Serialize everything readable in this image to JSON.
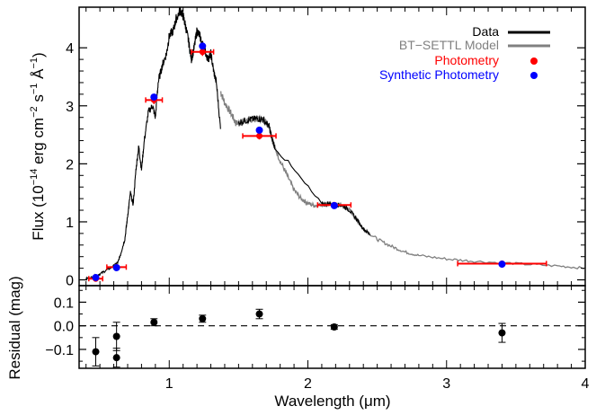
{
  "chart_data": [
    {
      "type": "line",
      "panel": "top",
      "ylabel_main": "Flux (10",
      "ylabel_exp1": "−14",
      "ylabel_mid": " erg cm",
      "ylabel_exp2": "−2",
      "ylabel_mid2": " s",
      "ylabel_exp3": "−1",
      "ylabel_mid3": " Å",
      "ylabel_exp4": "−1",
      "ylabel_end": ")",
      "xlim": [
        0.35,
        4.0
      ],
      "ylim": [
        -0.1,
        4.7
      ],
      "y_ticks": [
        "0",
        "1",
        "2",
        "3",
        "4"
      ],
      "legend_position": "top-right",
      "legend": [
        {
          "label": "Data",
          "color": "#000000",
          "marker": "line"
        },
        {
          "label": "BT−SETTL Model",
          "color": "#808080",
          "marker": "line"
        },
        {
          "label": "Photometry",
          "color": "#ff0000",
          "marker": "dot"
        },
        {
          "label": "Synthetic Photometry",
          "color": "#0000ff",
          "marker": "dot"
        }
      ],
      "series": [
        {
          "name": "Data",
          "color": "#000000",
          "points": [
            [
              0.4,
              0.02
            ],
            [
              0.45,
              0.05
            ],
            [
              0.5,
              0.1
            ],
            [
              0.55,
              0.17
            ],
            [
              0.6,
              0.24
            ],
            [
              0.63,
              0.3
            ],
            [
              0.65,
              0.45
            ],
            [
              0.68,
              0.7
            ],
            [
              0.7,
              1.1
            ],
            [
              0.72,
              1.5
            ],
            [
              0.74,
              1.3
            ],
            [
              0.76,
              1.9
            ],
            [
              0.78,
              2.3
            ],
            [
              0.8,
              1.9
            ],
            [
              0.82,
              2.4
            ],
            [
              0.85,
              2.9
            ],
            [
              0.88,
              3.0
            ],
            [
              0.9,
              2.8
            ],
            [
              0.92,
              3.4
            ],
            [
              0.95,
              3.7
            ],
            [
              0.98,
              3.9
            ],
            [
              1.0,
              4.2
            ],
            [
              1.03,
              4.3
            ],
            [
              1.05,
              4.5
            ],
            [
              1.08,
              4.65
            ],
            [
              1.1,
              4.55
            ],
            [
              1.12,
              4.35
            ],
            [
              1.14,
              4.1
            ],
            [
              1.16,
              3.8
            ],
            [
              1.18,
              4.0
            ],
            [
              1.2,
              4.3
            ],
            [
              1.22,
              4.2
            ],
            [
              1.25,
              4.0
            ],
            [
              1.28,
              3.8
            ],
            [
              1.3,
              3.9
            ],
            [
              1.32,
              3.6
            ],
            [
              1.34,
              3.4
            ],
            [
              1.37,
              2.6
            ]
          ]
        },
        {
          "name": "BT−SETTL Model",
          "color": "#808080",
          "points": [
            [
              1.37,
              3.25
            ],
            [
              1.4,
              3.05
            ],
            [
              1.45,
              2.85
            ],
            [
              1.48,
              2.7
            ],
            [
              1.52,
              2.72
            ],
            [
              1.56,
              2.75
            ],
            [
              1.6,
              2.77
            ],
            [
              1.64,
              2.78
            ],
            [
              1.68,
              2.76
            ],
            [
              1.72,
              2.65
            ],
            [
              1.75,
              2.35
            ],
            [
              1.8,
              2.05
            ],
            [
              1.85,
              1.8
            ],
            [
              1.9,
              1.55
            ],
            [
              1.95,
              1.4
            ],
            [
              2.0,
              1.32
            ],
            [
              2.05,
              1.28
            ],
            [
              2.1,
              1.3
            ],
            [
              2.15,
              1.31
            ],
            [
              2.2,
              1.3
            ],
            [
              2.25,
              1.28
            ],
            [
              2.3,
              1.2
            ],
            [
              2.35,
              1.05
            ],
            [
              2.4,
              0.88
            ],
            [
              2.5,
              0.7
            ],
            [
              2.6,
              0.58
            ],
            [
              2.7,
              0.48
            ],
            [
              2.8,
              0.42
            ],
            [
              3.0,
              0.36
            ],
            [
              3.2,
              0.32
            ],
            [
              3.5,
              0.28
            ],
            [
              3.8,
              0.24
            ],
            [
              4.0,
              0.2
            ]
          ]
        },
        {
          "name": "Data",
          "color": "#000000",
          "points": [
            [
              1.5,
              2.72
            ],
            [
              1.56,
              2.75
            ],
            [
              1.6,
              2.77
            ],
            [
              1.64,
              2.78
            ],
            [
              1.68,
              2.76
            ],
            [
              1.72,
              2.65
            ],
            [
              1.74,
              2.45
            ],
            [
              1.76,
              2.3
            ],
            [
              2.1,
              1.3
            ],
            [
              2.15,
              1.31
            ],
            [
              2.2,
              1.3
            ],
            [
              2.25,
              1.28
            ],
            [
              2.3,
              1.2
            ],
            [
              2.35,
              1.05
            ],
            [
              2.4,
              0.88
            ],
            [
              2.45,
              0.78
            ]
          ]
        }
      ],
      "photometry": [
        {
          "x": 0.47,
          "y": 0.02,
          "xerr": 0.05,
          "yerr": 0.02
        },
        {
          "x": 0.62,
          "y": 0.22,
          "xerr": 0.07,
          "yerr": 0.03
        },
        {
          "x": 0.89,
          "y": 3.1,
          "xerr": 0.06,
          "yerr": 0.07
        },
        {
          "x": 1.24,
          "y": 3.93,
          "xerr": 0.08,
          "yerr": 0.07
        },
        {
          "x": 1.65,
          "y": 2.48,
          "xerr": 0.12,
          "yerr": 0.06
        },
        {
          "x": 2.19,
          "y": 1.29,
          "xerr": 0.12,
          "yerr": 0.03
        },
        {
          "x": 3.4,
          "y": 0.28,
          "xerr": 0.32,
          "yerr": 0.01
        }
      ],
      "synthetic_photometry": [
        {
          "x": 0.47,
          "y": 0.04
        },
        {
          "x": 0.62,
          "y": 0.21
        },
        {
          "x": 0.89,
          "y": 3.15
        },
        {
          "x": 1.24,
          "y": 4.03
        },
        {
          "x": 1.65,
          "y": 2.58
        },
        {
          "x": 2.19,
          "y": 1.28
        },
        {
          "x": 3.4,
          "y": 0.27
        }
      ]
    },
    {
      "type": "scatter",
      "panel": "bottom",
      "ylabel": "Residual (mag)",
      "xlabel": "Wavelength (μm)",
      "xlim": [
        0.35,
        4.0
      ],
      "ylim": [
        -0.18,
        0.17
      ],
      "x_ticks": [
        "1",
        "2",
        "3",
        "4"
      ],
      "y_ticks": [
        "0.1",
        "0.0",
        "−0.1"
      ],
      "reference_line": 0.0,
      "points": [
        {
          "x": 0.47,
          "y": -0.11,
          "err": 0.06
        },
        {
          "x": 0.62,
          "y": -0.045,
          "err": 0.06
        },
        {
          "x": 0.62,
          "y": -0.135,
          "err": 0.04
        },
        {
          "x": 0.89,
          "y": 0.015,
          "err": 0.015
        },
        {
          "x": 1.24,
          "y": 0.03,
          "err": 0.015
        },
        {
          "x": 1.65,
          "y": 0.05,
          "err": 0.02
        },
        {
          "x": 2.19,
          "y": -0.005,
          "err": 0.01
        },
        {
          "x": 3.4,
          "y": -0.03,
          "err": 0.04
        }
      ]
    }
  ]
}
